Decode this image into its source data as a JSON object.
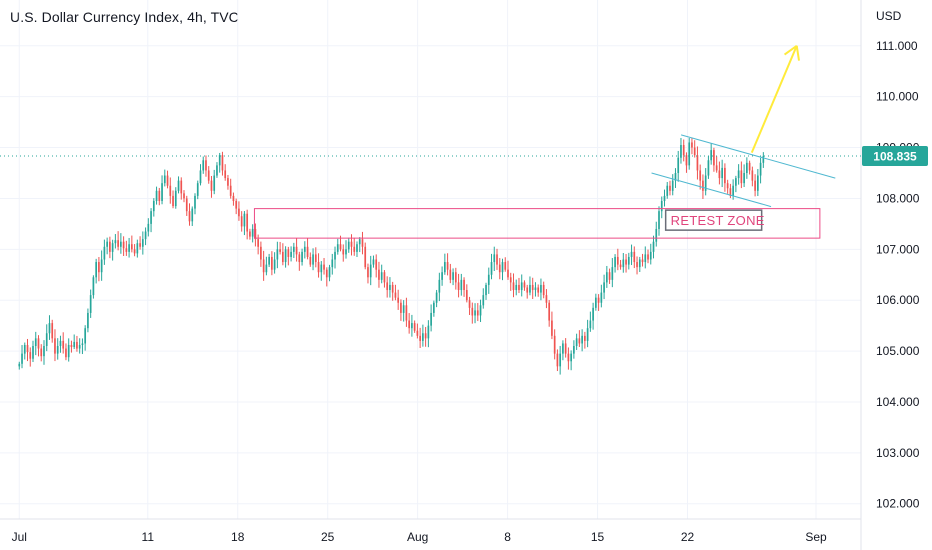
{
  "header": {
    "title": "U.S. Dollar Currency Index, 4h, TVC"
  },
  "colors": {
    "up": "#26a69a",
    "down": "#ef5350",
    "grid": "#f0f3fa",
    "axis_border": "#e0e3eb",
    "last_price_line": "#26a69a",
    "zone": "#ec4b86",
    "channel": "#4fb8d0",
    "arrow": "#ffeb3b"
  },
  "chart_data": {
    "type": "candlestick",
    "title": "U.S. Dollar Currency Index, 4h, TVC",
    "currency_label": "USD",
    "last_price": "108.835",
    "y_ticks": [
      "102.000",
      "103.000",
      "104.000",
      "105.000",
      "106.000",
      "107.000",
      "108.000",
      "109.000",
      "110.000",
      "111.000"
    ],
    "ylim": [
      101.7,
      111.9
    ],
    "x_ticks": [
      {
        "label": "Jul",
        "day": 0
      },
      {
        "label": "11",
        "day": 10
      },
      {
        "label": "18",
        "day": 17
      },
      {
        "label": "25",
        "day": 24
      },
      {
        "label": "Aug",
        "day": 31
      },
      {
        "label": "8",
        "day": 38
      },
      {
        "label": "15",
        "day": 45
      },
      {
        "label": "22",
        "day": 52
      },
      {
        "label": "Sep",
        "day": 62
      }
    ],
    "xlim": [
      -1.5,
      65.5
    ],
    "closes": [
      104.75,
      104.95,
      105.12,
      104.98,
      104.85,
      105.1,
      105.25,
      105.05,
      104.9,
      105.1,
      105.35,
      105.55,
      105.25,
      104.95,
      105.1,
      105.2,
      105.05,
      104.88,
      105.12,
      105.08,
      105.18,
      105.05,
      105.12,
      105.15,
      105.45,
      105.75,
      106.1,
      106.45,
      106.75,
      106.55,
      106.8,
      107.05,
      107.15,
      106.95,
      107.12,
      107.18,
      107.05,
      107.15,
      107.02,
      106.95,
      107.1,
      107.0,
      106.92,
      107.12,
      107.05,
      107.2,
      107.35,
      107.5,
      107.75,
      107.95,
      108.15,
      107.95,
      108.3,
      108.45,
      108.25,
      108.05,
      107.85,
      108.15,
      108.35,
      108.1,
      108.0,
      107.75,
      107.55,
      107.8,
      108.05,
      108.3,
      108.55,
      108.75,
      108.55,
      108.35,
      108.15,
      108.45,
      108.65,
      108.85,
      108.55,
      108.4,
      108.25,
      108.05,
      107.95,
      107.8,
      107.65,
      107.45,
      107.7,
      107.35,
      107.25,
      107.4,
      107.2,
      107.05,
      106.8,
      106.55,
      106.7,
      106.85,
      106.6,
      106.8,
      107.0,
      106.95,
      106.75,
      107.0,
      106.85,
      106.95,
      107.05,
      106.9,
      106.75,
      106.95,
      107.05,
      106.85,
      106.7,
      106.9,
      106.75,
      106.55,
      106.7,
      106.6,
      106.45,
      106.65,
      106.8,
      106.95,
      107.1,
      107.0,
      106.9,
      107.0,
      107.15,
      107.05,
      106.95,
      107.1,
      107.2,
      107.05,
      106.65,
      106.45,
      106.7,
      106.8,
      106.6,
      106.4,
      106.55,
      106.35,
      106.2,
      106.3,
      106.15,
      106.05,
      105.95,
      105.75,
      105.9,
      105.6,
      105.45,
      105.55,
      105.4,
      105.3,
      105.2,
      105.35,
      105.25,
      105.5,
      105.75,
      105.95,
      106.15,
      106.4,
      106.55,
      106.75,
      106.6,
      106.4,
      106.55,
      106.35,
      106.2,
      106.4,
      106.2,
      106.0,
      105.85,
      105.7,
      105.8,
      105.7,
      105.9,
      106.1,
      106.3,
      106.5,
      106.75,
      106.9,
      106.7,
      106.55,
      106.75,
      106.6,
      106.45,
      106.35,
      106.2,
      106.3,
      106.2,
      106.35,
      106.25,
      106.15,
      106.3,
      106.2,
      106.25,
      106.15,
      106.3,
      106.1,
      105.95,
      105.6,
      105.3,
      104.95,
      104.7,
      104.95,
      105.15,
      104.95,
      104.8,
      104.95,
      105.1,
      105.25,
      105.15,
      105.3,
      105.2,
      105.45,
      105.6,
      105.85,
      106.05,
      105.95,
      106.15,
      106.35,
      106.55,
      106.4,
      106.65,
      106.85,
      106.7,
      106.65,
      106.8,
      106.7,
      106.85,
      106.95,
      106.75,
      106.65,
      106.8,
      106.75,
      106.9,
      106.8,
      106.95,
      107.15,
      107.4,
      107.75,
      107.95,
      108.05,
      108.25,
      108.15,
      108.35,
      108.5,
      108.8,
      109.05,
      108.85,
      108.65,
      109.1,
      109.0,
      108.85,
      108.55,
      108.35,
      108.15,
      108.45,
      108.75,
      108.95,
      108.65,
      108.55,
      108.4,
      108.6,
      108.3,
      108.2,
      108.05,
      108.25,
      108.4,
      108.55,
      108.3,
      108.5,
      108.7,
      108.55,
      108.35,
      108.15,
      108.45,
      108.7,
      108.835
    ],
    "retest_zone": {
      "label": "RETEST ZONE",
      "from_day": 18.3,
      "to_day": 62.3,
      "y_top": 107.8,
      "y_bottom": 107.22
    },
    "channel": {
      "upper": [
        [
          51.5,
          109.25
        ],
        [
          63.5,
          108.4
        ]
      ],
      "lower": [
        [
          49.2,
          108.5
        ],
        [
          58.5,
          107.84
        ]
      ]
    },
    "arrow": {
      "from": [
        57.0,
        108.9
      ],
      "to": [
        60.5,
        111.0
      ]
    }
  }
}
